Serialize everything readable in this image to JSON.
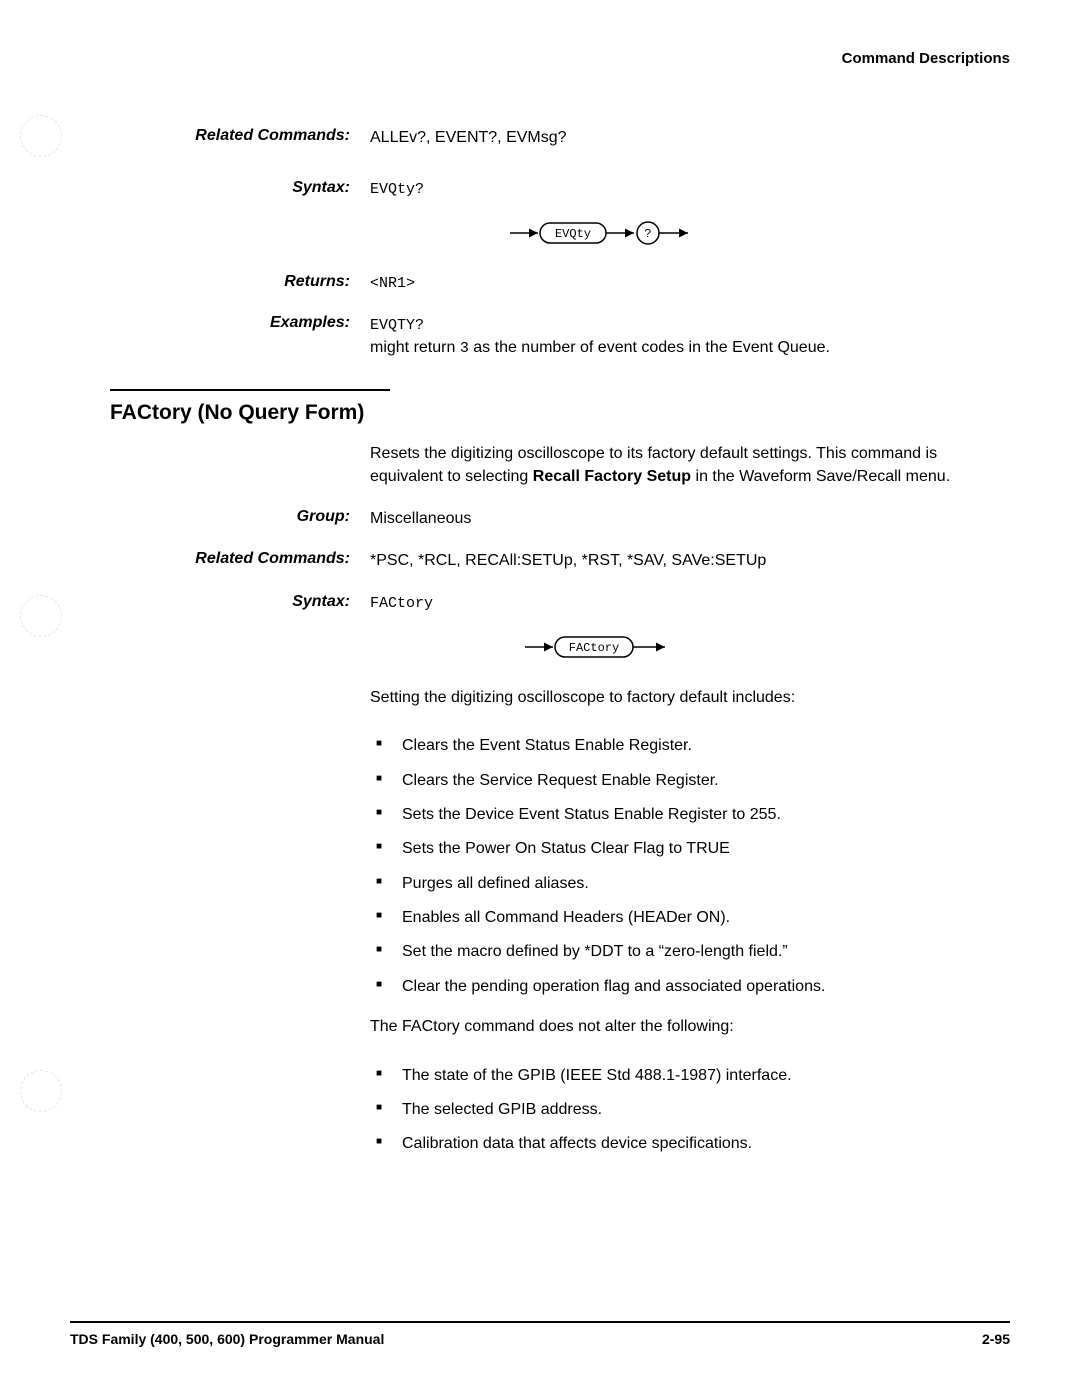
{
  "header": {
    "right": "Command Descriptions"
  },
  "evqty": {
    "related_label": "Related Commands:",
    "related_value": "ALLEv?, EVENT?, EVMsg?",
    "syntax_label": "Syntax:",
    "syntax_value": "EVQty?",
    "diagram_token": "EVQty",
    "diagram_q": "?",
    "returns_label": "Returns:",
    "returns_value": "<NR1>",
    "examples_label": "Examples:",
    "examples_value_mono": "EVQTY?",
    "examples_value_text_a": "might return ",
    "examples_value_text_mono": "3",
    "examples_value_text_b": " as the number of event codes in the Event Queue."
  },
  "factory": {
    "title": "FACtory (No Query Form)",
    "desc_a": "Resets the digitizing oscilloscope to its factory default settings. This command is equivalent to selecting ",
    "desc_bold": "Recall Factory Setup",
    "desc_b": " in the Waveform Save/Recall menu.",
    "group_label": "Group:",
    "group_value": "Miscellaneous",
    "related_label": "Related Commands:",
    "related_value": "*PSC, *RCL, RECAll:SETUp, *RST, *SAV, SAVe:SETUp",
    "syntax_label": "Syntax:",
    "syntax_value": "FACtory",
    "diagram_token": "FACtory",
    "includes_intro": "Setting the digitizing oscilloscope to factory default includes:",
    "includes": [
      "Clears the Event Status Enable Register.",
      "Clears the Service Request Enable Register.",
      "Sets the Device Event Status Enable Register to 255.",
      "Sets the Power On Status Clear Flag to TRUE",
      "Purges all defined aliases.",
      "Enables all Command Headers (HEADer ON).",
      "Set the macro defined by *DDT to a “zero-length field.”",
      "Clear the pending operation flag and associated operations."
    ],
    "not_alter_intro": "The FACtory command does not alter the following:",
    "not_alter": [
      "The state of the GPIB (IEEE Std 488.1-1987) interface.",
      "The selected GPIB address.",
      "Calibration data that affects device specifications."
    ]
  },
  "footer": {
    "left": "TDS Family (400, 500, 600) Programmer Manual",
    "right": "2-95"
  }
}
